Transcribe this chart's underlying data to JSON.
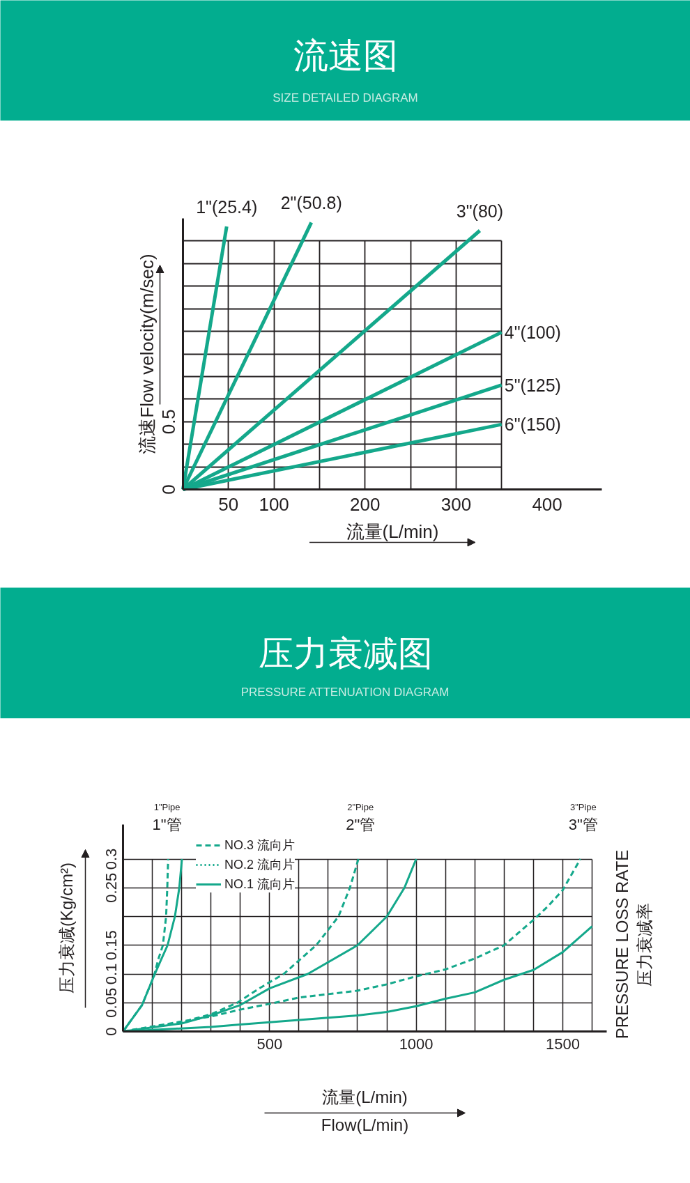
{
  "chart_data": [
    {
      "type": "line",
      "title": "流速图",
      "subtitle": "SIZE DETAILED DIAGRAM",
      "xlabel": "流量(L/min)",
      "ylabel": "流速Flow velocity(m/sec)",
      "xlim": [
        0,
        460
      ],
      "ylim": [
        0,
        2
      ],
      "xticks": [
        {
          "value": 0,
          "label": null
        },
        50,
        100,
        {
          "value": 150,
          "label": null
        },
        200,
        {
          "value": 250,
          "label": null
        },
        300,
        {
          "value": 350,
          "label": null
        },
        400
      ],
      "yticks": [
        0,
        {
          "value": 0.1667,
          "label": null
        },
        {
          "value": 0.3333,
          "label": null
        },
        0.5,
        {
          "value": 0.6667,
          "label": null
        },
        {
          "value": 0.8333,
          "label": null
        },
        {
          "value": 1,
          "label": null
        },
        {
          "value": 1.1667,
          "label": null
        },
        {
          "value": 1.3333,
          "label": null
        },
        {
          "value": 1.5,
          "label": null
        },
        {
          "value": 1.6667,
          "label": null
        },
        {
          "value": 1.8333,
          "label": null
        }
      ],
      "grid": true,
      "series": [
        {
          "name": "1\"(25.4)",
          "color": "#14a88b",
          "x": [
            0,
            48
          ],
          "values": [
            0,
            1.94
          ]
        },
        {
          "name": "2\"(50.8)",
          "color": "#14a88b",
          "x": [
            0,
            141
          ],
          "values": [
            0,
            1.97
          ]
        },
        {
          "name": "3\"(80)",
          "color": "#14a88b",
          "x": [
            0,
            326
          ],
          "values": [
            0,
            1.91
          ]
        },
        {
          "name": "4\"(100)",
          "color": "#14a88b",
          "x": [
            0,
            350
          ],
          "values": [
            0,
            1.16
          ]
        },
        {
          "name": "5\"(125)",
          "color": "#14a88b",
          "x": [
            0,
            350
          ],
          "values": [
            0,
            0.77
          ]
        },
        {
          "name": "6\"(150)",
          "color": "#14a88b",
          "x": [
            0,
            350
          ],
          "values": [
            0,
            0.48
          ]
        }
      ]
    },
    {
      "type": "line",
      "title": "压力衰减图",
      "subtitle": "PRESSURE ATTENUATION DIAGRAM",
      "xlabel": "流量(L/min)\nFlow(L/min)",
      "ylabel": "压力衰减(Kg/cm²)",
      "y2label": "PRESSURE LOSS RATE\n压力衰减率",
      "xlim": [
        0,
        1650
      ],
      "ylim": [
        0,
        0.36
      ],
      "xticks": [
        {
          "value": 100,
          "label": null
        },
        {
          "value": 200,
          "label": null
        },
        {
          "value": 300,
          "label": null
        },
        {
          "value": 400,
          "label": null
        },
        500,
        {
          "value": 600,
          "label": null
        },
        {
          "value": 700,
          "label": null
        },
        {
          "value": 800,
          "label": null
        },
        {
          "value": 900,
          "label": null
        },
        1000,
        {
          "value": 1100,
          "label": null
        },
        {
          "value": 1200,
          "label": null
        },
        {
          "value": 1300,
          "label": null
        },
        {
          "value": 1400,
          "label": null
        },
        1500,
        {
          "value": 1600,
          "label": null
        }
      ],
      "yticks": [
        0,
        0.05,
        0.1,
        0.15,
        {
          "value": 0.2,
          "label": null
        },
        0.25,
        0.3
      ],
      "grid": true,
      "legend": "top",
      "annotations": [
        {
          "text": "1\"Pipe\n1\"管",
          "x": 150,
          "y": 0.3
        },
        {
          "text": "2\"Pipe\n2\"管",
          "x": 810,
          "y": 0.3
        },
        {
          "text": "3\"Pipe\n3\"管",
          "x": 1570,
          "y": 0.3
        }
      ],
      "series": [
        {
          "name": "NO.3 流向片",
          "color": "#14a88b",
          "line_style": "dashed",
          "x": [
            0,
            65,
            106,
            120,
            136,
            147,
            151,
            154
          ],
          "values": [
            0,
            0.046,
            0.097,
            0.125,
            0.15,
            0.2,
            0.25,
            0.3
          ]
        },
        {
          "color": "#14a88b",
          "line_style": "dashed",
          "x": [
            0,
            200,
            300,
            390,
            465,
            548,
            659,
            735,
            774,
            803
          ],
          "values": [
            0,
            0.016,
            0.03,
            0.05,
            0.075,
            0.1,
            0.15,
            0.2,
            0.25,
            0.3
          ]
        },
        {
          "color": "#14a88b",
          "line_style": "dashed",
          "x": [
            0,
            300,
            400,
            500,
            600,
            700,
            800,
            900,
            1000,
            1100,
            1200,
            1300,
            1400,
            1450,
            1500,
            1560
          ],
          "values": [
            0,
            0.026,
            0.038,
            0.048,
            0.059,
            0.065,
            0.071,
            0.082,
            0.096,
            0.108,
            0.127,
            0.15,
            0.194,
            0.218,
            0.246,
            0.3
          ]
        },
        {
          "name": "NO.2 流向片",
          "color": "#14a88b",
          "line_style": "dotted"
        },
        {
          "name": "NO.1 流向片",
          "color": "#14a88b",
          "line_style": "solid",
          "x": [
            0,
            65,
            106,
            130,
            152,
            177,
            192,
            201
          ],
          "values": [
            0,
            0.046,
            0.097,
            0.125,
            0.15,
            0.2,
            0.25,
            0.3
          ]
        },
        {
          "color": "#14a88b",
          "line_style": "solid",
          "x": [
            0,
            200,
            300,
            400,
            500,
            630,
            800,
            900,
            960,
            1000
          ],
          "values": [
            0,
            0.014,
            0.028,
            0.046,
            0.075,
            0.1,
            0.15,
            0.2,
            0.25,
            0.3
          ]
        },
        {
          "color": "#14a88b",
          "line_style": "solid",
          "x": [
            0,
            300,
            400,
            500,
            600,
            700,
            800,
            900,
            1000,
            1100,
            1200,
            1300,
            1400,
            1500,
            1600
          ],
          "values": [
            0,
            0.008,
            0.012,
            0.016,
            0.02,
            0.024,
            0.028,
            0.034,
            0.044,
            0.057,
            0.068,
            0.09,
            0.107,
            0.138,
            0.183
          ]
        }
      ]
    }
  ]
}
